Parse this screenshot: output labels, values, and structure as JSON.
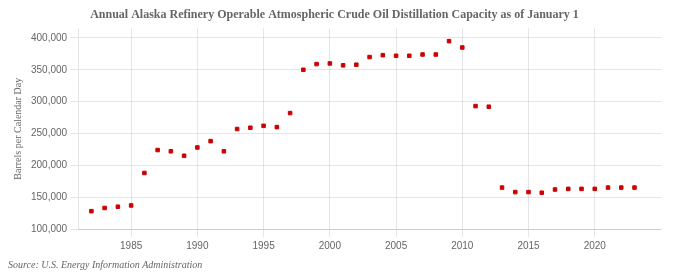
{
  "chart_data": {
    "type": "scatter",
    "title": "Annual Alaska Refinery Operable Atmospheric Crude Oil Distillation Capacity as of January 1",
    "ylabel": "Barrels per Calendar Day",
    "annotations": [
      "Source: U.S. Energy Information Administration"
    ],
    "x": [
      1982,
      1983,
      1984,
      1985,
      1986,
      1987,
      1988,
      1989,
      1990,
      1991,
      1992,
      1993,
      1994,
      1995,
      1996,
      1997,
      1998,
      1999,
      2000,
      2001,
      2002,
      2003,
      2004,
      2005,
      2006,
      2007,
      2008,
      2009,
      2010,
      2011,
      2012,
      2013,
      2014,
      2015,
      2016,
      2017,
      2018,
      2019,
      2020,
      2021,
      2022,
      2023
    ],
    "values": [
      128000,
      133000,
      135000,
      137000,
      188000,
      224000,
      222000,
      215000,
      228000,
      238000,
      222000,
      257000,
      259000,
      262000,
      260000,
      282000,
      350000,
      359000,
      360000,
      357000,
      358000,
      370000,
      373000,
      372000,
      372000,
      374000,
      374000,
      395000,
      385000,
      293000,
      292000,
      165000,
      158000,
      158000,
      157000,
      162000,
      163000,
      163000,
      163000,
      165000,
      165000,
      165000
    ],
    "color": "#cc0000",
    "marker": "square",
    "xlim": [
      1981,
      2025
    ],
    "xticks": [
      1985,
      1990,
      1995,
      2000,
      2005,
      2010,
      2015,
      2020
    ],
    "ylim": [
      100000,
      415000
    ],
    "yticks": [
      {
        "value": 100000,
        "label": "100,000"
      },
      {
        "value": 150000,
        "label": "150,000"
      },
      {
        "value": 200000,
        "label": "200,000"
      },
      {
        "value": 250000,
        "label": "250,000"
      },
      {
        "value": 300000,
        "label": "300,000"
      },
      {
        "value": 350000,
        "label": "350,000"
      },
      {
        "value": 400000,
        "label": "400,000"
      }
    ],
    "grid": true
  }
}
